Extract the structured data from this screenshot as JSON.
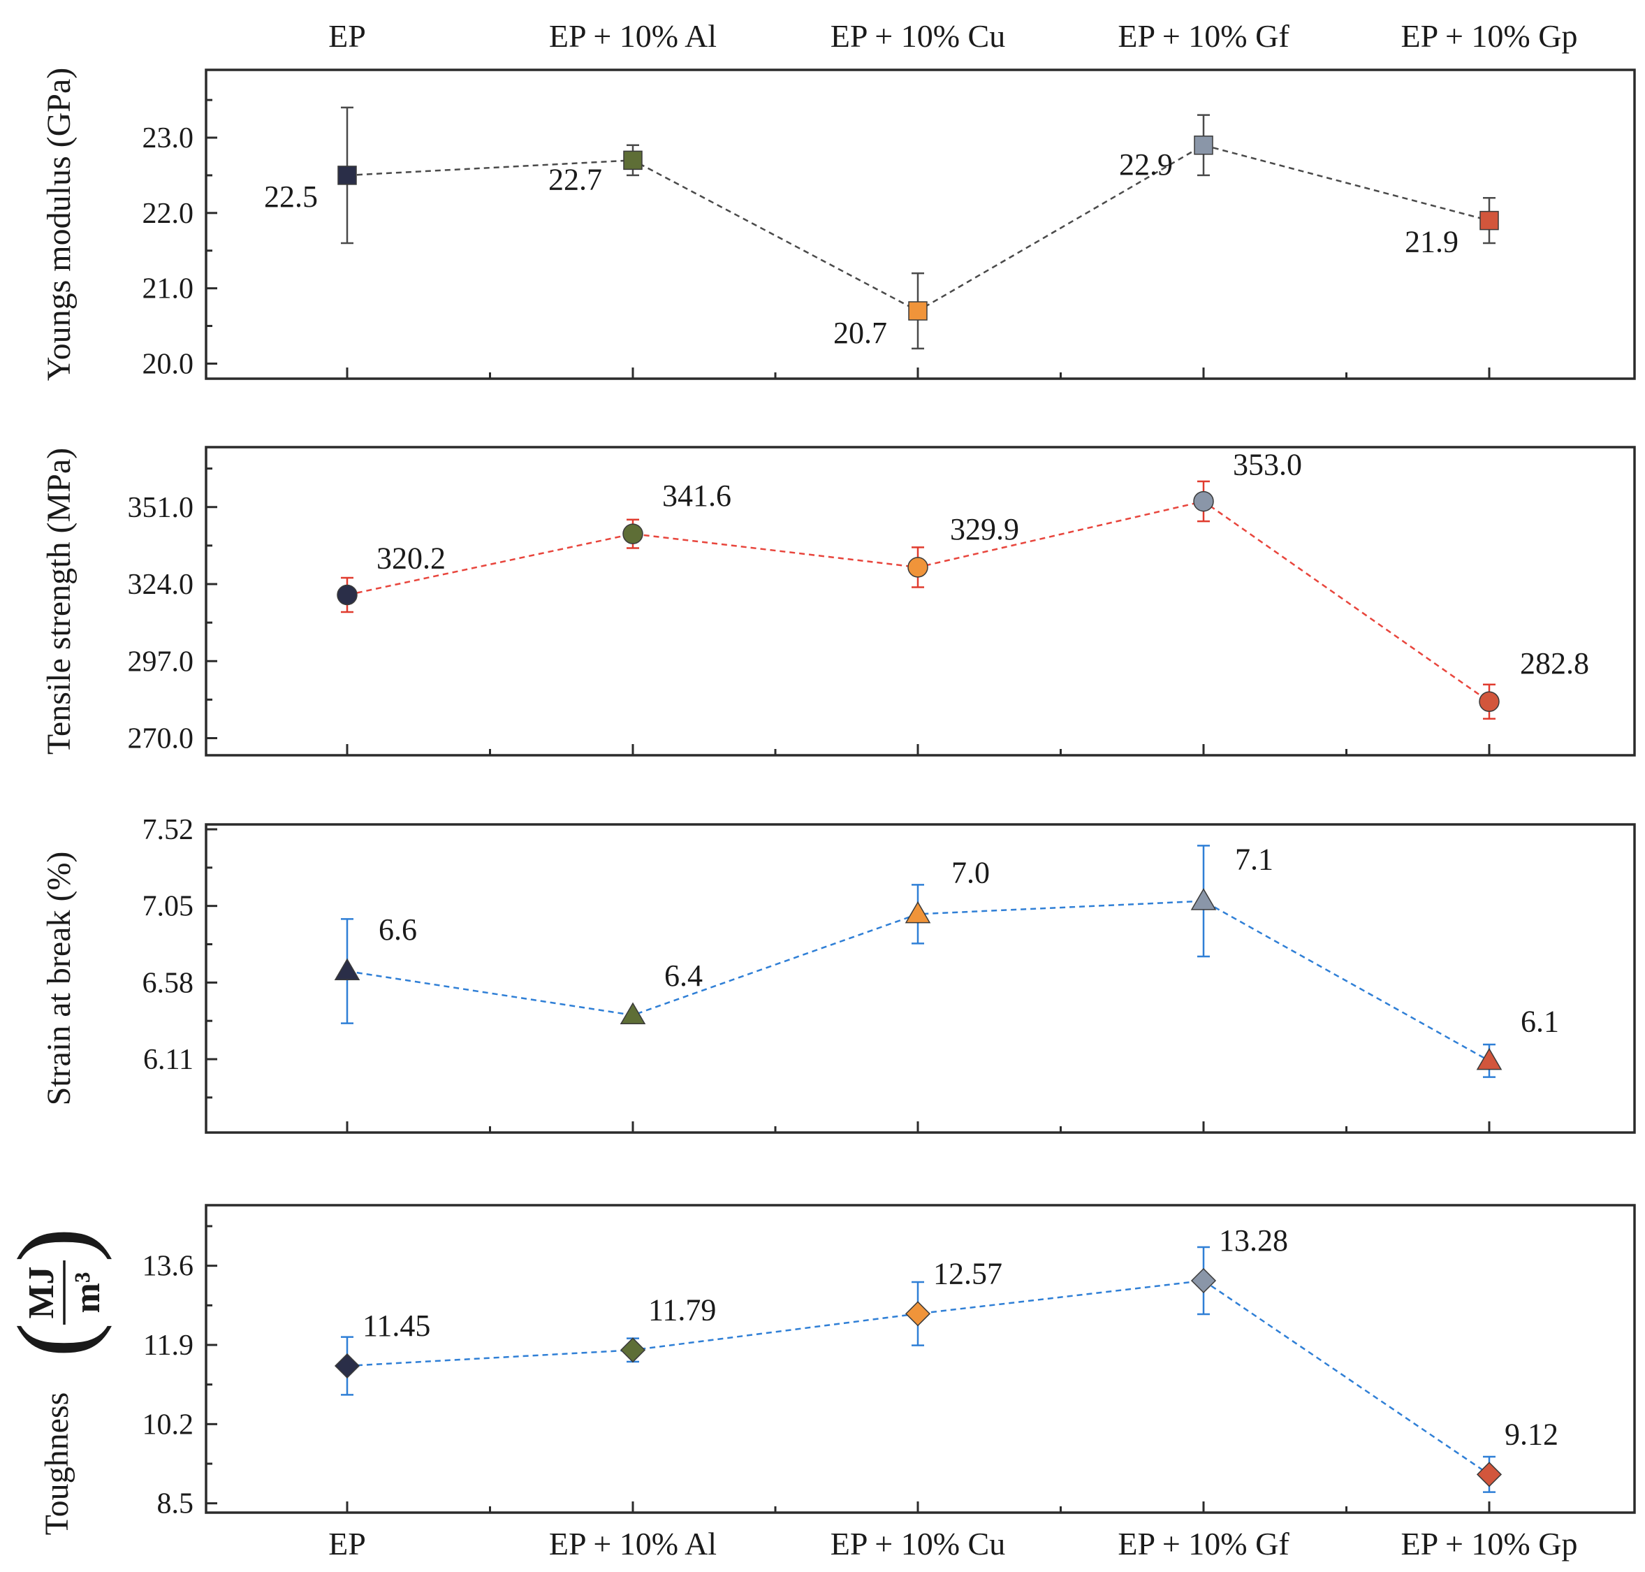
{
  "colors": {
    "EP": "#2a2e48",
    "EP + 10% Al": "#5e6e36",
    "EP + 10% Cu": "#f0943a",
    "EP + 10% Gf": "#8a96a8",
    "EP + 10% Gp": "#d2563c",
    "frame": "#2b2b2b",
    "line_black": "#4a4a4a",
    "line_red": "#e8453c",
    "line_blue": "#2f7fd6",
    "errbar_black": "#4a4a4a",
    "errbar_red": "#e03b2e",
    "errbar_blue": "#2f7fd6"
  },
  "chart_data": [
    {
      "type": "line",
      "categories": [
        "EP",
        "EP + 10% Al",
        "EP + 10% Cu",
        "EP + 10% Gf",
        "EP + 10% Gp"
      ],
      "ylabel": "Youngs modulus (GPa)",
      "ylim": [
        19.8,
        23.9
      ],
      "yticks": [
        "20.0",
        "21.0",
        "22.0",
        "23.0"
      ],
      "marker": "square",
      "line_color": "line_black",
      "errbar_color": "errbar_black",
      "values": [
        22.5,
        22.7,
        20.7,
        22.9,
        21.9
      ],
      "errors": [
        0.9,
        0.2,
        0.5,
        0.4,
        0.3
      ],
      "data_labels": [
        "22.5",
        "22.7",
        "20.7",
        "22.9",
        "21.9"
      ],
      "label_side": "below-left",
      "top_categories_shown": true
    },
    {
      "type": "line",
      "categories": [
        "EP",
        "EP + 10% Al",
        "EP + 10% Cu",
        "EP + 10% Gf",
        "EP + 10% Gp"
      ],
      "ylabel": "Tensile strength (MPa)",
      "ylim": [
        264,
        372
      ],
      "yticks": [
        "270.0",
        "297.0",
        "324.0",
        "351.0"
      ],
      "marker": "circle",
      "line_color": "line_red",
      "errbar_color": "errbar_red",
      "values": [
        320.2,
        341.6,
        329.9,
        353.0,
        282.8
      ],
      "errors": [
        6,
        5,
        7,
        7,
        6
      ],
      "data_labels": [
        "320.2",
        "341.6",
        "329.9",
        "353.0",
        "282.8"
      ],
      "label_side": "above-right"
    },
    {
      "type": "line",
      "categories": [
        "EP",
        "EP + 10% Al",
        "EP + 10% Cu",
        "EP + 10% Gf",
        "EP + 10% Gp"
      ],
      "ylabel": "Strain at break (%)",
      "ylim": [
        5.66,
        7.55
      ],
      "yticks": [
        "6.11",
        "6.58",
        "7.05",
        "7.52"
      ],
      "marker": "triangle",
      "line_color": "line_blue",
      "errbar_color": "errbar_blue",
      "values": [
        6.65,
        6.38,
        7.0,
        7.08,
        6.1
      ],
      "errors": [
        0.32,
        0.0,
        0.18,
        0.34,
        0.1
      ],
      "data_labels": [
        "6.6",
        "6.4",
        "7.0",
        "7.1",
        "6.1"
      ],
      "label_side": "above-right"
    },
    {
      "type": "line",
      "categories": [
        "EP",
        "EP + 10% Al",
        "EP + 10% Cu",
        "EP + 10% Gf",
        "EP + 10% Gp"
      ],
      "ylabel": "Toughness",
      "ylabel_unit_numerator": "MJ",
      "ylabel_unit_denominator": "m³",
      "ylim": [
        8.3,
        14.9
      ],
      "yticks": [
        "8.5",
        "10.2",
        "11.9",
        "13.6"
      ],
      "marker": "diamond",
      "line_color": "line_blue",
      "errbar_color": "errbar_blue",
      "values": [
        11.45,
        11.79,
        12.57,
        13.28,
        9.12
      ],
      "errors": [
        0.62,
        0.25,
        0.68,
        0.72,
        0.38
      ],
      "data_labels": [
        "11.45",
        "11.79",
        "12.57",
        "13.28",
        "9.12"
      ],
      "label_side": "above-right",
      "bottom_categories_shown": true
    }
  ]
}
